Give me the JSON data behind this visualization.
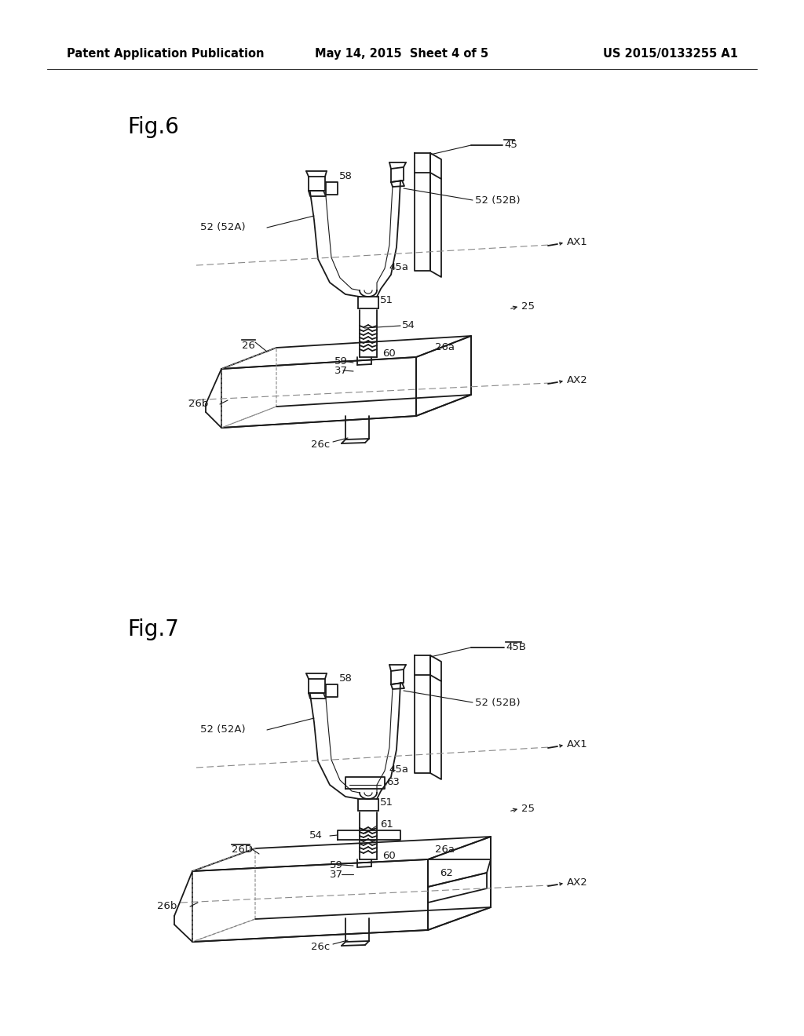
{
  "background_color": "#ffffff",
  "header_left": "Patent Application Publication",
  "header_center": "May 14, 2015  Sheet 4 of 5",
  "header_right": "US 2015/0133255 A1",
  "header_fontsize": 10.5,
  "fig6_label": "Fig.6",
  "fig7_label": "Fig.7",
  "fig6_label_fontsize": 20,
  "fig7_label_fontsize": 20,
  "line_color": "#1a1a1a",
  "annotation_color": "#1a1a1a",
  "ann_fontsize": 9.5
}
